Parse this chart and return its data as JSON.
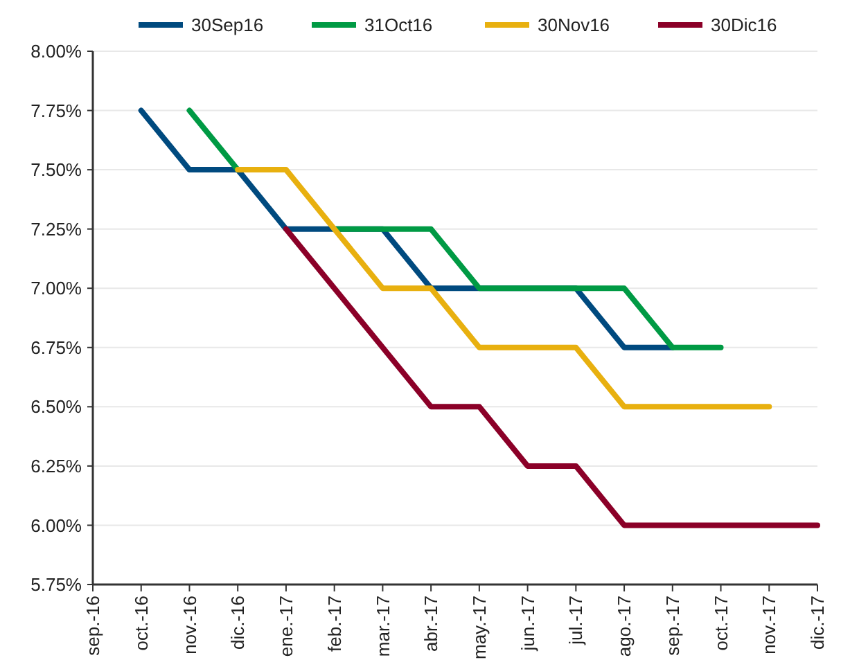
{
  "chart_data": {
    "type": "line",
    "categories": [
      "sep.-16",
      "oct.-16",
      "nov.-16",
      "dic.-16",
      "ene.-17",
      "feb.-17",
      "mar.-17",
      "abr.-17",
      "may.-17",
      "jun.-17",
      "jul.-17",
      "ago.-17",
      "sep.-17",
      "oct.-17",
      "nov.-17",
      "dic.-17"
    ],
    "series": [
      {
        "name": "30Sep16",
        "color": "#004a7f",
        "values": [
          null,
          7.75,
          7.5,
          7.5,
          7.25,
          7.25,
          7.25,
          7.0,
          7.0,
          7.0,
          7.0,
          6.75,
          6.75,
          null,
          null,
          null
        ]
      },
      {
        "name": "31Oct16",
        "color": "#009a44",
        "values": [
          null,
          null,
          7.75,
          7.5,
          null,
          7.25,
          7.25,
          7.25,
          7.0,
          7.0,
          7.0,
          7.0,
          6.75,
          6.75,
          null,
          null
        ]
      },
      {
        "name": "30Nov16",
        "color": "#e8b00f",
        "values": [
          null,
          null,
          null,
          7.5,
          7.5,
          7.25,
          7.0,
          7.0,
          6.75,
          6.75,
          6.75,
          6.5,
          6.5,
          6.5,
          6.5,
          null
        ]
      },
      {
        "name": "30Dic16",
        "color": "#8b0028",
        "values": [
          null,
          null,
          null,
          null,
          7.25,
          7.0,
          6.75,
          6.5,
          6.5,
          6.25,
          6.25,
          6.0,
          6.0,
          6.0,
          6.0,
          6.0
        ]
      }
    ],
    "ylim": [
      5.75,
      8.0
    ],
    "yticks": [
      {
        "value": 5.75,
        "label": "5.75%"
      },
      {
        "value": 6.0,
        "label": "6.00%"
      },
      {
        "value": 6.25,
        "label": "6.25%"
      },
      {
        "value": 6.5,
        "label": "6.50%"
      },
      {
        "value": 6.75,
        "label": "6.75%"
      },
      {
        "value": 7.0,
        "label": "7.00%"
      },
      {
        "value": 7.25,
        "label": "7.25%"
      },
      {
        "value": 7.5,
        "label": "7.50%"
      },
      {
        "value": 7.75,
        "label": "7.75%"
      },
      {
        "value": 8.0,
        "label": "8.00%"
      }
    ],
    "grid": "y",
    "legend": "top",
    "marker": "none",
    "line_style": "solid"
  }
}
